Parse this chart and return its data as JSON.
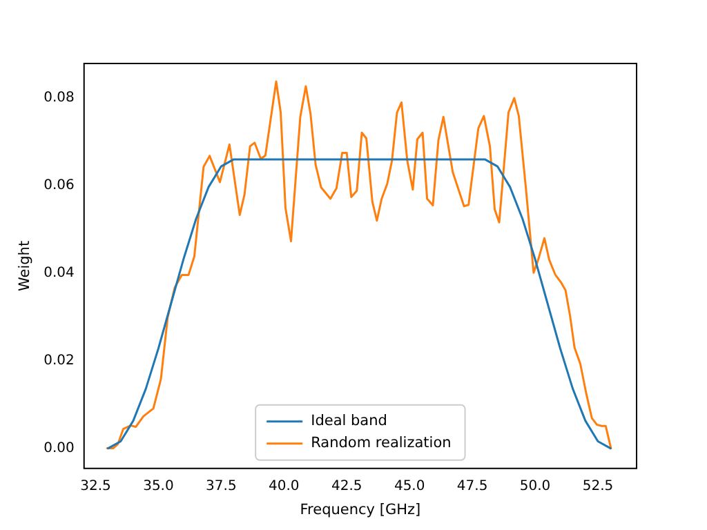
{
  "chart_data": {
    "type": "line",
    "xlabel": "Frequency [GHz]",
    "ylabel": "Weight",
    "xlim": [
      32.04,
      54.04
    ],
    "ylim": [
      -0.0046,
      0.0879
    ],
    "xticks": [
      {
        "value": 32.5,
        "label": "32.5"
      },
      {
        "value": 35,
        "label": "35.0"
      },
      {
        "value": 37.5,
        "label": "37.5"
      },
      {
        "value": 40,
        "label": "40.0"
      },
      {
        "value": 42.5,
        "label": "42.5"
      },
      {
        "value": 45,
        "label": "45.0"
      },
      {
        "value": 47.5,
        "label": "47.5"
      },
      {
        "value": 50,
        "label": "50.0"
      },
      {
        "value": 52.5,
        "label": "52.5"
      }
    ],
    "yticks": [
      {
        "value": 0,
        "label": "0.00"
      },
      {
        "value": 0.02,
        "label": "0.02"
      },
      {
        "value": 0.04,
        "label": "0.04"
      },
      {
        "value": 0.06,
        "label": "0.06"
      },
      {
        "value": 0.08,
        "label": "0.08"
      }
    ],
    "legend": "bottom",
    "grid": false,
    "marker": "none",
    "line_style": "solid",
    "series": [
      {
        "name": "Ideal band",
        "color": "#1f77b4",
        "x": [
          33,
          33.5,
          34,
          34.5,
          35,
          35.5,
          36,
          36.5,
          37,
          37.5,
          38,
          48,
          48.5,
          49,
          49.5,
          50,
          50.5,
          51,
          51.5,
          52,
          52.5,
          53
        ],
        "values": [
          0,
          0.0016,
          0.0063,
          0.0136,
          0.0228,
          0.033,
          0.0432,
          0.0524,
          0.0597,
          0.0644,
          0.066,
          0.066,
          0.0644,
          0.0597,
          0.0524,
          0.0432,
          0.033,
          0.0228,
          0.0136,
          0.0063,
          0.0016,
          0
        ]
      },
      {
        "name": "Random realization",
        "color": "#ff7f0e",
        "x": [
          32.96,
          33.2,
          33.39,
          33.6,
          33.9,
          34.1,
          34.4,
          34.8,
          35.1,
          35.37,
          35.65,
          35.93,
          36.2,
          36.43,
          36.8,
          37.04,
          37.45,
          37.83,
          38.24,
          38.43,
          38.65,
          38.83,
          39.08,
          39.26,
          39.69,
          39.87,
          40.06,
          40.28,
          40.65,
          40.87,
          41.06,
          41.26,
          41.48,
          41.85,
          42.09,
          42.32,
          42.5,
          42.68,
          42.9,
          43.1,
          43.28,
          43.52,
          43.7,
          43.89,
          44.11,
          44.3,
          44.5,
          44.68,
          44.91,
          45.13,
          45.31,
          45.52,
          45.7,
          45.93,
          46.15,
          46.35,
          46.72,
          47.17,
          47.35,
          47.74,
          47.96,
          48.2,
          48.39,
          48.57,
          48.94,
          49.17,
          49.35,
          49.63,
          49.94,
          50.13,
          50.37,
          50.56,
          50.8,
          51.02,
          51.21,
          51.39,
          51.57,
          51.8,
          52.04,
          52.26,
          52.46,
          52.65,
          52.81,
          53.02
        ],
        "values": [
          0,
          0,
          0.001,
          0.0044,
          0.0052,
          0.0049,
          0.0073,
          0.0091,
          0.0158,
          0.0299,
          0.0367,
          0.0396,
          0.0396,
          0.0438,
          0.0643,
          0.0668,
          0.0608,
          0.0694,
          0.0533,
          0.058,
          0.069,
          0.0698,
          0.0661,
          0.0669,
          0.0838,
          0.0767,
          0.0549,
          0.0473,
          0.0757,
          0.0827,
          0.0763,
          0.0648,
          0.0596,
          0.057,
          0.0594,
          0.0675,
          0.0675,
          0.0574,
          0.0588,
          0.0721,
          0.0708,
          0.0563,
          0.052,
          0.057,
          0.0604,
          0.0657,
          0.0767,
          0.079,
          0.0657,
          0.0591,
          0.0706,
          0.0721,
          0.057,
          0.0555,
          0.0704,
          0.0757,
          0.0631,
          0.0553,
          0.0556,
          0.0731,
          0.0759,
          0.069,
          0.0546,
          0.0516,
          0.0767,
          0.08,
          0.0759,
          0.0596,
          0.0401,
          0.0432,
          0.048,
          0.0431,
          0.0397,
          0.038,
          0.0361,
          0.0303,
          0.023,
          0.0193,
          0.0124,
          0.0069,
          0.0054,
          0.0051,
          0.0051,
          0
        ]
      }
    ]
  }
}
